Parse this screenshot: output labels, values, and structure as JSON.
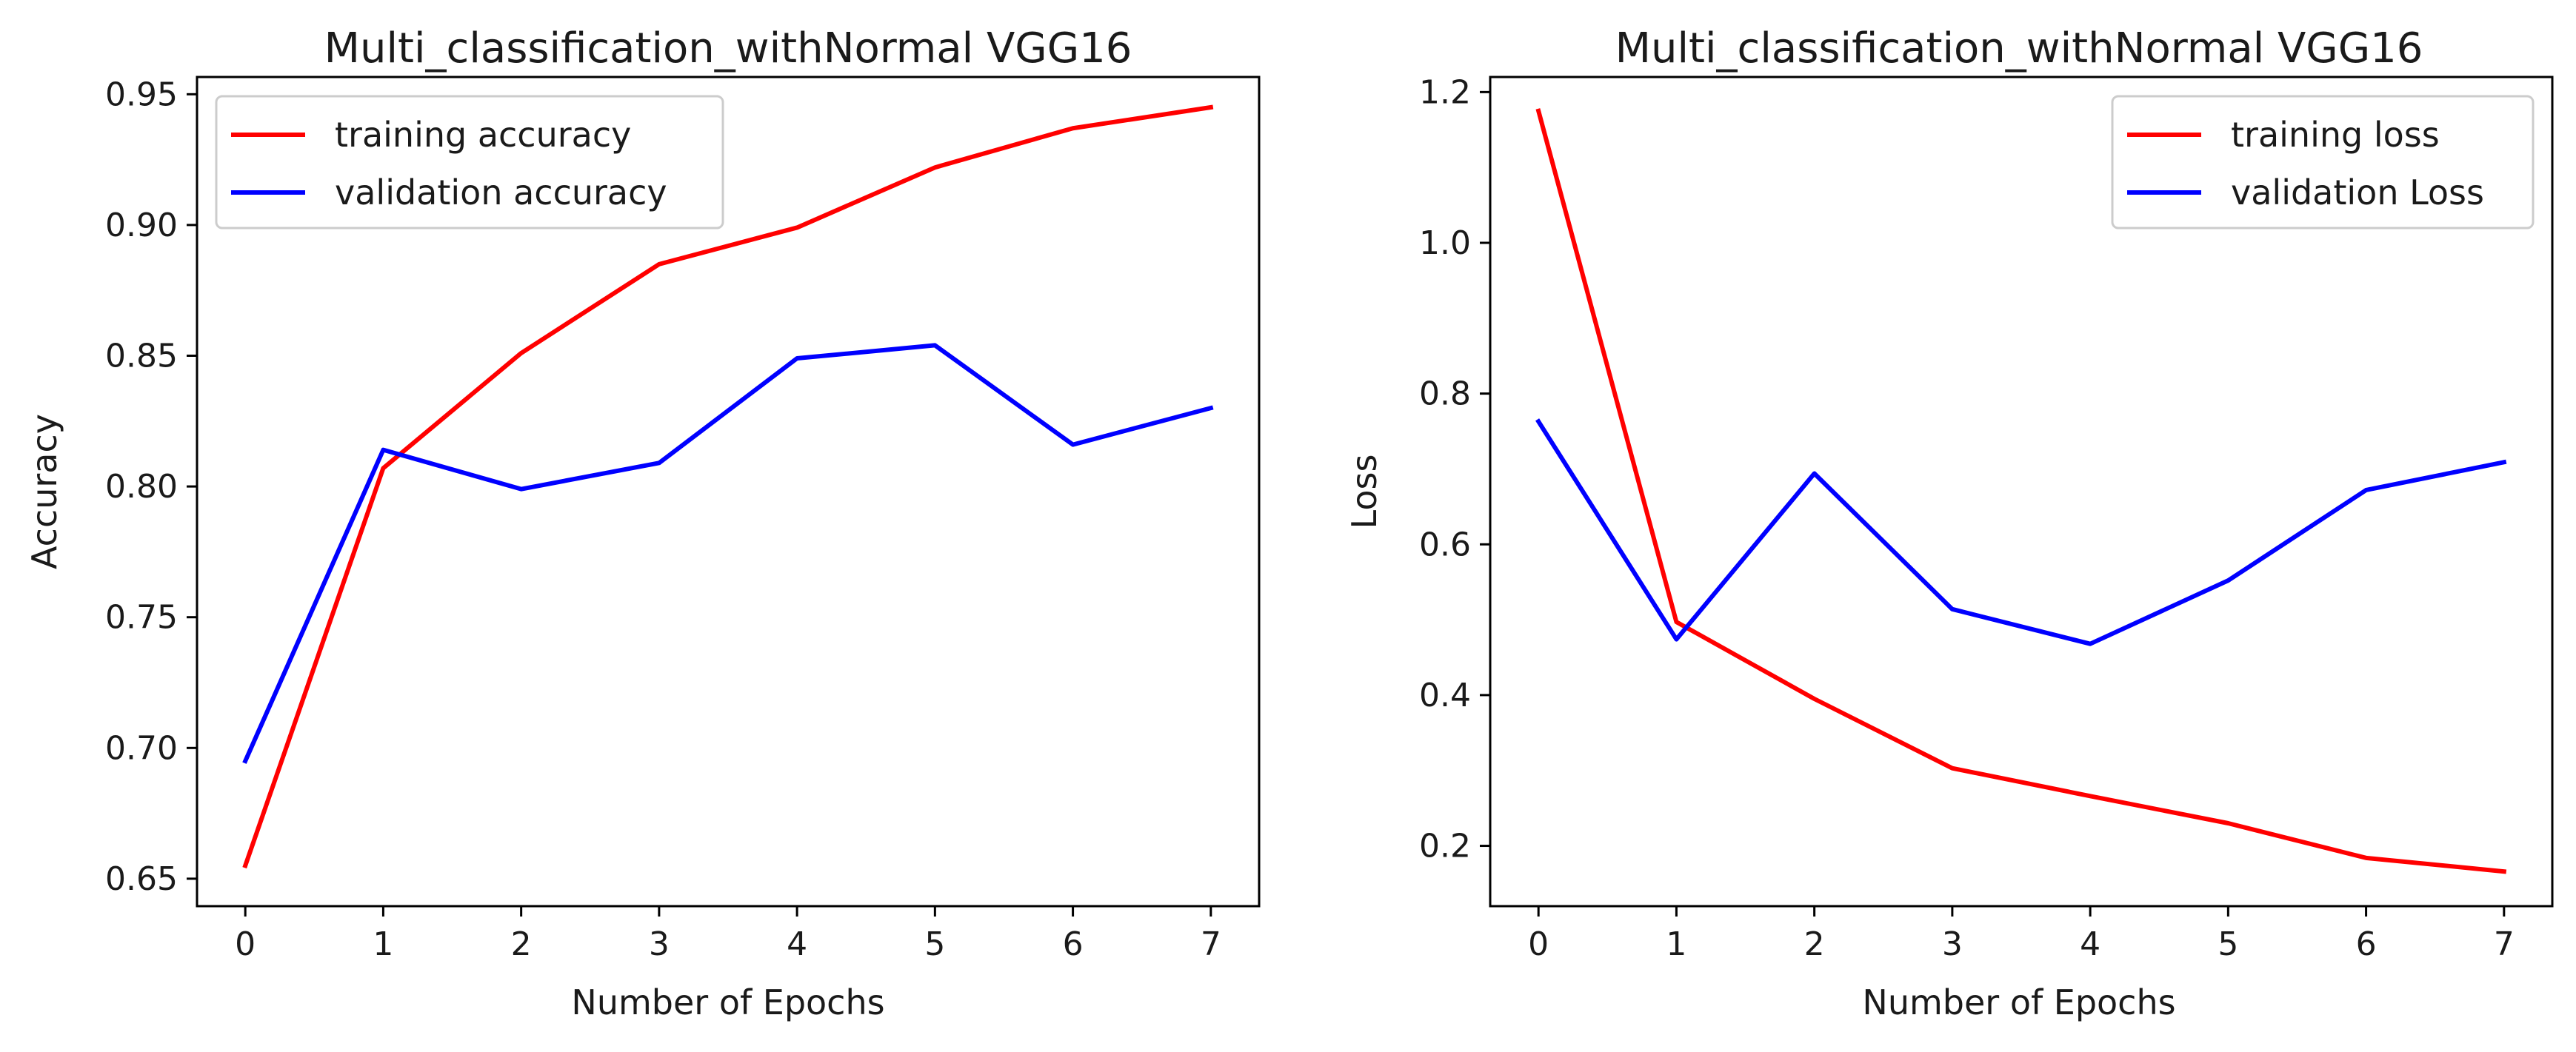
{
  "chart_data": [
    {
      "type": "line",
      "title": "Multi_classification_withNormal VGG16",
      "xlabel": "Number of Epochs",
      "ylabel": "Accuracy",
      "x": [
        0,
        1,
        2,
        3,
        4,
        5,
        6,
        7
      ],
      "xticks": [
        "0",
        "1",
        "2",
        "3",
        "4",
        "5",
        "6",
        "7"
      ],
      "xlim": [
        -0.35,
        7.35
      ],
      "yticks": [
        "0.65",
        "0.70",
        "0.75",
        "0.80",
        "0.85",
        "0.90",
        "0.95"
      ],
      "ylim": [
        0.6395,
        0.9566
      ],
      "legend_position": "upper-left",
      "series": [
        {
          "name": "training accuracy",
          "color": "#ff0000",
          "values": [
            0.655,
            0.807,
            0.851,
            0.885,
            0.899,
            0.922,
            0.937,
            0.945
          ]
        },
        {
          "name": "validation accuracy",
          "color": "#0000ff",
          "values": [
            0.695,
            0.814,
            0.799,
            0.809,
            0.849,
            0.854,
            0.816,
            0.83
          ]
        }
      ]
    },
    {
      "type": "line",
      "title": "Multi_classification_withNormal VGG16",
      "xlabel": "Number of Epochs",
      "ylabel": "Loss",
      "x": [
        0,
        1,
        2,
        3,
        4,
        5,
        6,
        7
      ],
      "xticks": [
        "0",
        "1",
        "2",
        "3",
        "4",
        "5",
        "6",
        "7"
      ],
      "xlim": [
        -0.35,
        7.35
      ],
      "yticks": [
        "0.2",
        "0.4",
        "0.6",
        "0.8",
        "1.0",
        "1.2"
      ],
      "ylim": [
        0.12,
        1.22
      ],
      "legend_position": "upper-right",
      "series": [
        {
          "name": "training loss",
          "color": "#ff0000",
          "values": [
            1.175,
            0.497,
            0.395,
            0.303,
            0.266,
            0.23,
            0.184,
            0.166
          ]
        },
        {
          "name": "validation Loss",
          "color": "#0000ff",
          "values": [
            0.763,
            0.474,
            0.694,
            0.514,
            0.468,
            0.552,
            0.672,
            0.709
          ]
        }
      ]
    }
  ]
}
